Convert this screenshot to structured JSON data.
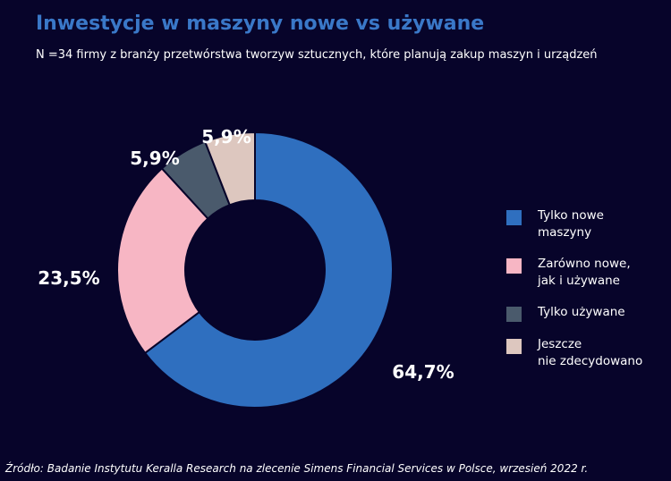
{
  "header": {
    "title": "Inwestycje w maszyny nowe vs używane",
    "subtitle": "N =34 firmy z branży przetwórstwa  tworzyw  sztucznych, które planują zakup maszyn i urządzeń"
  },
  "footer": {
    "source": "Źródło: Badanie Instytutu Keralla Research na zlecenie Simens Financial Services w Polsce, wrzesień 2022 r."
  },
  "chart_data": {
    "type": "pie",
    "subtype": "donut",
    "legend_position": "right",
    "slices": [
      {
        "label": "Tylko nowe\nmaszyny",
        "value": 64.7,
        "display": "64,7%",
        "color": "#2f6fbf"
      },
      {
        "label": "Zarówno nowe,\njak i używane",
        "value": 23.5,
        "display": "23,5%",
        "color": "#f7b6c4"
      },
      {
        "label": "Tylko używane",
        "value": 5.9,
        "display": "5,9%",
        "color": "#4a5a6c"
      },
      {
        "label": "Jeszcze\nnie zdecydowano",
        "value": 5.9,
        "display": "5,9%",
        "color": "#ddc7bf"
      }
    ]
  }
}
